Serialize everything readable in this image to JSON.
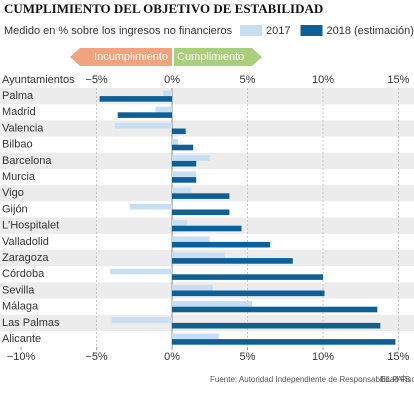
{
  "chart_data": {
    "type": "bar",
    "orientation": "horizontal",
    "title": "CUMPLIMIENTO DEL OBJETIVO DE ESTABILIDAD",
    "subtitle": "Medido en % sobre los ingresos no financieros",
    "category_axis_label": "Ayuntamientos",
    "annotations": {
      "negative": "Incumplimiento",
      "positive": "Cumplimiento"
    },
    "categories": [
      "Palma",
      "Madrid",
      "Valencia",
      "Bilbao",
      "Barcelona",
      "Murcia",
      "Vigo",
      "Gijón",
      "L'Hospitalet",
      "Valladolid",
      "Zaragoza",
      "Córdoba",
      "Sevilla",
      "Málaga",
      "Las Palmas",
      "Alicante"
    ],
    "series": [
      {
        "name": "2017",
        "color": "#c7dff0",
        "values": [
          -0.6,
          -1.1,
          -3.8,
          0.4,
          2.5,
          1.6,
          1.3,
          -2.8,
          1.0,
          2.5,
          3.5,
          -4.1,
          2.7,
          5.3,
          -4.0,
          3.1
        ]
      },
      {
        "name": "2018 (estimación)",
        "color": "#0d5f96",
        "values": [
          -4.8,
          -3.6,
          0.9,
          1.4,
          1.6,
          1.6,
          3.8,
          3.8,
          4.6,
          6.5,
          8.0,
          10.0,
          10.1,
          13.6,
          13.8,
          14.8
        ]
      }
    ],
    "xlim": [
      -11,
      15.5
    ],
    "xticks": [
      {
        "value": -5,
        "label": "−5%"
      },
      {
        "value": 0,
        "label": "0%"
      },
      {
        "value": 5,
        "label": "5%"
      },
      {
        "value": 10,
        "label": "10%"
      },
      {
        "value": 15,
        "label": "15%"
      }
    ],
    "xticks_bottom": [
      {
        "value": -10,
        "label": "−10%"
      },
      {
        "value": -5,
        "label": "−5%"
      },
      {
        "value": 0,
        "label": "0%"
      },
      {
        "value": 5,
        "label": "5%"
      },
      {
        "value": 10,
        "label": "10%"
      },
      {
        "value": 15,
        "label": "15%"
      }
    ],
    "grid": true,
    "source": "Fuente: Autoridad Independiente de Responsabilidad Fiscal.",
    "credit": "EL PAÍS"
  }
}
